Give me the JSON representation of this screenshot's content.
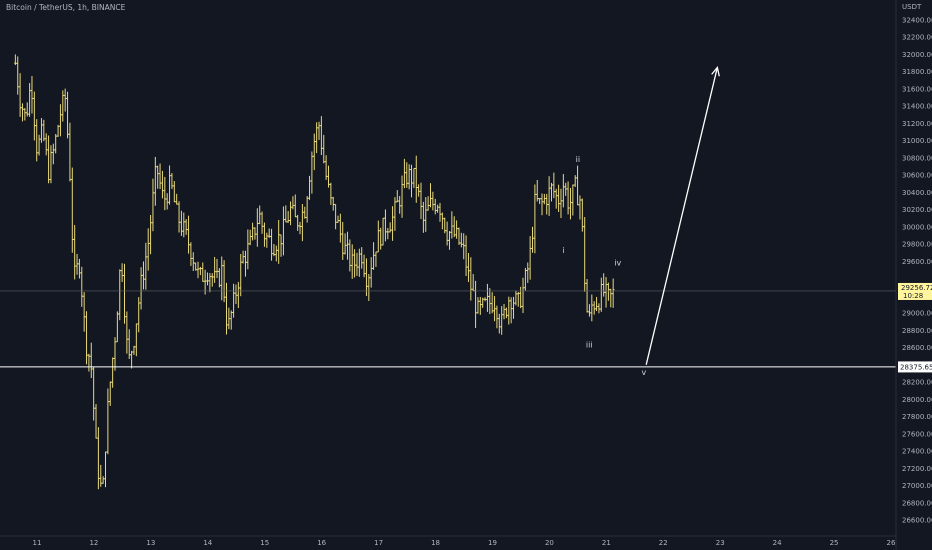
{
  "header": {
    "title": "Bitcoin / TetherUS, 1h, BINANCE",
    "currency": "USDT"
  },
  "colors": {
    "background": "#131722",
    "bar": "#e8d97a",
    "axis_text": "#b2b5be",
    "support_line": "#ffffff",
    "last_price_badge": "#fff59d",
    "support_badge": "#ffffff"
  },
  "chart_data": {
    "type": "ohlc",
    "x_tick_labels": [
      "11",
      "12",
      "13",
      "14",
      "15",
      "16",
      "17",
      "18",
      "19",
      "20",
      "21",
      "22",
      "23",
      "24",
      "25",
      "26"
    ],
    "y_tick_labels": [
      "26600.00",
      "26800.00",
      "27000.00",
      "27200.00",
      "27400.00",
      "27600.00",
      "27800.00",
      "28000.00",
      "28200.00",
      "28600.00",
      "28800.00",
      "29000.00",
      "29600.00",
      "29800.00",
      "30000.00",
      "30200.00",
      "30400.00",
      "30600.00",
      "30800.00",
      "31000.00",
      "31200.00",
      "31400.00",
      "31600.00",
      "31800.00",
      "32000.00",
      "32200.00",
      "32400.00"
    ],
    "ylim": [
      26500,
      32500
    ],
    "x_domain": [
      10.6,
      26.1
    ],
    "close_path": [
      [
        10.62,
        31900
      ],
      [
        10.7,
        31500
      ],
      [
        10.8,
        31250
      ],
      [
        10.9,
        31700
      ],
      [
        11.0,
        30900
      ],
      [
        11.1,
        31100
      ],
      [
        11.2,
        30650
      ],
      [
        11.3,
        30900
      ],
      [
        11.4,
        31300
      ],
      [
        11.5,
        31500
      ],
      [
        11.58,
        30600
      ],
      [
        11.65,
        29400
      ],
      [
        11.75,
        29600
      ],
      [
        11.85,
        28700
      ],
      [
        11.95,
        28400
      ],
      [
        12.05,
        27300
      ],
      [
        12.15,
        26850
      ],
      [
        12.22,
        27700
      ],
      [
        12.3,
        28300
      ],
      [
        12.38,
        28800
      ],
      [
        12.48,
        29700
      ],
      [
        12.6,
        28400
      ],
      [
        12.7,
        28700
      ],
      [
        12.82,
        29300
      ],
      [
        12.95,
        29800
      ],
      [
        13.1,
        30700
      ],
      [
        13.22,
        30300
      ],
      [
        13.35,
        30500
      ],
      [
        13.45,
        30150
      ],
      [
        13.55,
        30000
      ],
      [
        13.7,
        29750
      ],
      [
        13.85,
        29400
      ],
      [
        14.0,
        29500
      ],
      [
        14.15,
        29350
      ],
      [
        14.25,
        29500
      ],
      [
        14.35,
        28800
      ],
      [
        14.45,
        29100
      ],
      [
        14.6,
        29600
      ],
      [
        14.75,
        29800
      ],
      [
        14.9,
        30150
      ],
      [
        15.0,
        29900
      ],
      [
        15.15,
        29800
      ],
      [
        15.3,
        29900
      ],
      [
        15.45,
        30200
      ],
      [
        15.55,
        30050
      ],
      [
        15.7,
        30200
      ],
      [
        15.85,
        30950
      ],
      [
        15.95,
        31200
      ],
      [
        16.05,
        30700
      ],
      [
        16.15,
        30300
      ],
      [
        16.25,
        30100
      ],
      [
        16.4,
        29750
      ],
      [
        16.55,
        29550
      ],
      [
        16.7,
        29700
      ],
      [
        16.8,
        29400
      ],
      [
        16.95,
        29800
      ],
      [
        17.1,
        30000
      ],
      [
        17.25,
        30100
      ],
      [
        17.4,
        30400
      ],
      [
        17.5,
        30600
      ],
      [
        17.65,
        30550
      ],
      [
        17.78,
        30050
      ],
      [
        17.9,
        30250
      ],
      [
        18.05,
        30300
      ],
      [
        18.2,
        29950
      ],
      [
        18.35,
        29900
      ],
      [
        18.5,
        29700
      ],
      [
        18.6,
        29350
      ],
      [
        18.75,
        29000
      ],
      [
        18.9,
        29100
      ],
      [
        19.05,
        29150
      ],
      [
        19.15,
        28850
      ],
      [
        19.3,
        29200
      ],
      [
        19.45,
        29100
      ],
      [
        19.55,
        29300
      ],
      [
        19.65,
        29600
      ],
      [
        19.75,
        30300
      ],
      [
        19.85,
        30250
      ],
      [
        19.95,
        30350
      ],
      [
        20.05,
        30450
      ],
      [
        20.15,
        30300
      ],
      [
        20.25,
        30500
      ],
      [
        20.35,
        30250
      ],
      [
        20.45,
        30450
      ],
      [
        20.55,
        30300
      ],
      [
        20.62,
        29400
      ],
      [
        20.68,
        28850
      ],
      [
        20.75,
        29100
      ],
      [
        20.85,
        29150
      ],
      [
        20.95,
        29250
      ],
      [
        21.05,
        29150
      ],
      [
        21.15,
        29256.72
      ]
    ],
    "series": [
      {
        "name": "Bitcoin / TetherUS",
        "last_value": 29256.72,
        "last_value_label": "29256.72",
        "countdown_label": "10:28"
      }
    ],
    "horizontal_lines": [
      {
        "value": 28375.65,
        "label": "28375.65"
      }
    ],
    "projection": {
      "from": [
        21.7,
        28400
      ],
      "to": [
        22.95,
        31850
      ]
    },
    "wave_labels": [
      {
        "text": "ii",
        "x": 20.5,
        "y": 30750
      },
      {
        "text": "i",
        "x": 20.25,
        "y": 29700
      },
      {
        "text": "iv",
        "x": 21.2,
        "y": 29550
      },
      {
        "text": "iii",
        "x": 20.7,
        "y": 28600
      },
      {
        "text": "v",
        "x": 21.66,
        "y": 28280
      }
    ]
  }
}
